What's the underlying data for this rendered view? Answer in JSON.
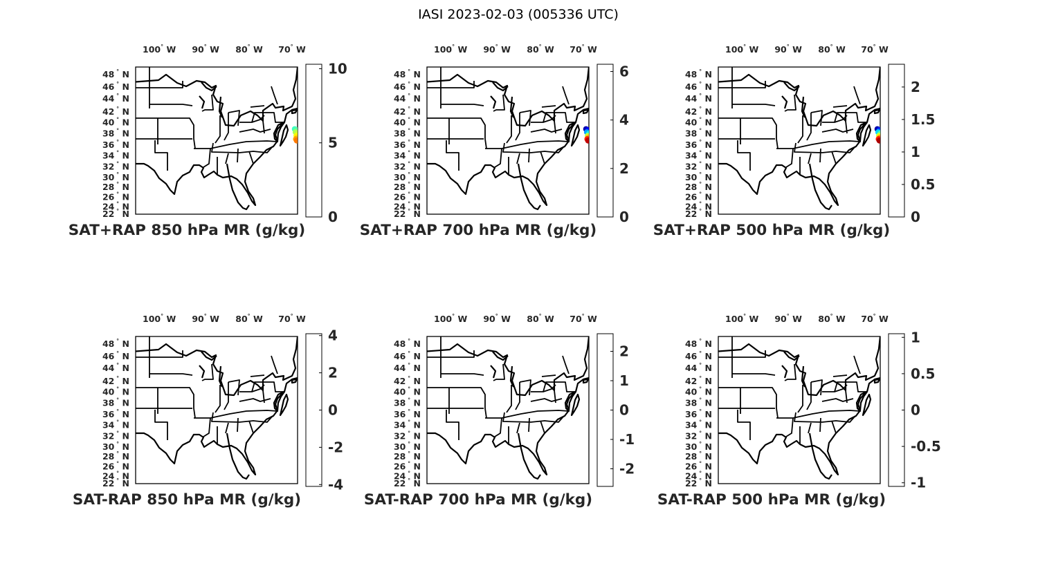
{
  "figure": {
    "title": "IASI 2023-02-03 (005336 UTC)"
  },
  "lon_labels": [
    {
      "num": "100",
      "deg": "°",
      "hem": "W"
    },
    {
      "num": "90",
      "deg": "°",
      "hem": "W"
    },
    {
      "num": "80",
      "deg": "°",
      "hem": "W"
    },
    {
      "num": "70",
      "deg": "°",
      "hem": "W"
    }
  ],
  "lat_labels": [
    {
      "num": "48",
      "deg": "°",
      "hem": "N"
    },
    {
      "num": "46",
      "deg": "°",
      "hem": "N"
    },
    {
      "num": "44",
      "deg": "°",
      "hem": "N"
    },
    {
      "num": "42",
      "deg": "°",
      "hem": "N"
    },
    {
      "num": "40",
      "deg": "°",
      "hem": "N"
    },
    {
      "num": "38",
      "deg": "°",
      "hem": "N"
    },
    {
      "num": "36",
      "deg": "°",
      "hem": "N"
    },
    {
      "num": "34",
      "deg": "°",
      "hem": "N"
    },
    {
      "num": "32",
      "deg": "°",
      "hem": "N"
    },
    {
      "num": "30",
      "deg": "°",
      "hem": "N"
    },
    {
      "num": "28",
      "deg": "°",
      "hem": "N"
    },
    {
      "num": "26",
      "deg": "°",
      "hem": "N"
    },
    {
      "num": "24",
      "deg": "°",
      "hem": "N"
    },
    {
      "num": "22",
      "deg": "°",
      "hem": "N"
    }
  ],
  "colormap": "jet",
  "map_extent": {
    "lon": [
      -106,
      -66
    ],
    "lat": [
      22,
      50
    ]
  },
  "panels": [
    {
      "title": "SAT+RAP 850 hPa MR (g/kg)",
      "colorbar": {
        "min": 0,
        "max": 10.3,
        "ticks": [
          {
            "value": 0,
            "label": "0"
          },
          {
            "value": 5,
            "label": "5"
          },
          {
            "value": 10,
            "label": "10"
          }
        ]
      },
      "swath": [
        {
          "lat": 38.2,
          "lon": -66.7,
          "value": 4.5
        },
        {
          "lat": 38.0,
          "lon": -66.2,
          "value": 4.8
        },
        {
          "lat": 37.6,
          "lon": -66.5,
          "value": 5.6
        },
        {
          "lat": 37.3,
          "lon": -66.0,
          "value": 5.9
        },
        {
          "lat": 36.9,
          "lon": -66.3,
          "value": 6.5
        },
        {
          "lat": 36.6,
          "lon": -66.1,
          "value": 6.8
        },
        {
          "lat": 36.3,
          "lon": -66.4,
          "value": 7.4
        },
        {
          "lat": 36.0,
          "lon": -66.2,
          "value": 7.8
        }
      ]
    },
    {
      "title": "SAT+RAP 700 hPa MR (g/kg)",
      "colorbar": {
        "min": 0,
        "max": 6.3,
        "ticks": [
          {
            "value": 0,
            "label": "0"
          },
          {
            "value": 2,
            "label": "2"
          },
          {
            "value": 4,
            "label": "4"
          },
          {
            "value": 6,
            "label": "6"
          }
        ]
      },
      "swath": [
        {
          "lat": 38.2,
          "lon": -66.7,
          "value": 0.3
        },
        {
          "lat": 38.0,
          "lon": -66.2,
          "value": 0.8
        },
        {
          "lat": 37.6,
          "lon": -66.5,
          "value": 1.8
        },
        {
          "lat": 37.3,
          "lon": -66.0,
          "value": 2.5
        },
        {
          "lat": 36.9,
          "lon": -66.3,
          "value": 3.6
        },
        {
          "lat": 36.6,
          "lon": -66.1,
          "value": 4.4
        },
        {
          "lat": 36.3,
          "lon": -66.4,
          "value": 5.3
        },
        {
          "lat": 36.0,
          "lon": -66.2,
          "value": 5.9
        }
      ]
    },
    {
      "title": "SAT+RAP 500 hPa MR (g/kg)",
      "colorbar": {
        "min": 0,
        "max": 2.35,
        "ticks": [
          {
            "value": 0,
            "label": "0"
          },
          {
            "value": 0.5,
            "label": "0.5"
          },
          {
            "value": 1,
            "label": "1"
          },
          {
            "value": 1.5,
            "label": "1.5"
          },
          {
            "value": 2,
            "label": "2"
          }
        ]
      },
      "swath": [
        {
          "lat": 38.2,
          "lon": -66.7,
          "value": 0.1
        },
        {
          "lat": 38.0,
          "lon": -66.2,
          "value": 0.4
        },
        {
          "lat": 37.6,
          "lon": -66.5,
          "value": 0.8
        },
        {
          "lat": 37.3,
          "lon": -66.0,
          "value": 1.1
        },
        {
          "lat": 36.9,
          "lon": -66.3,
          "value": 1.4
        },
        {
          "lat": 36.6,
          "lon": -66.1,
          "value": 1.7
        },
        {
          "lat": 36.3,
          "lon": -66.4,
          "value": 2.0
        },
        {
          "lat": 36.0,
          "lon": -66.2,
          "value": 2.25
        }
      ]
    },
    {
      "title": "SAT-RAP 850 hPa MR (g/kg)",
      "colorbar": {
        "min": -4.1,
        "max": 4.1,
        "ticks": [
          {
            "value": 4,
            "label": "4"
          },
          {
            "value": 2,
            "label": "2"
          },
          {
            "value": 0,
            "label": "0"
          },
          {
            "value": -2,
            "label": "-2"
          },
          {
            "value": -4,
            "label": "-4"
          }
        ]
      },
      "swath": []
    },
    {
      "title": "SAT-RAP 700 hPa MR (g/kg)",
      "colorbar": {
        "min": -2.6,
        "max": 2.6,
        "ticks": [
          {
            "value": 2,
            "label": "2"
          },
          {
            "value": 1,
            "label": "1"
          },
          {
            "value": 0,
            "label": "0"
          },
          {
            "value": -1,
            "label": "-1"
          },
          {
            "value": -2,
            "label": "-2"
          }
        ]
      },
      "swath": []
    },
    {
      "title": "SAT-RAP 500 hPa MR (g/kg)",
      "colorbar": {
        "min": -1.05,
        "max": 1.05,
        "ticks": [
          {
            "value": 1,
            "label": "1"
          },
          {
            "value": 0.5,
            "label": "0.5"
          },
          {
            "value": 0,
            "label": "0"
          },
          {
            "value": -0.5,
            "label": "-0.5"
          },
          {
            "value": -1,
            "label": "-1"
          }
        ]
      },
      "swath": []
    }
  ]
}
